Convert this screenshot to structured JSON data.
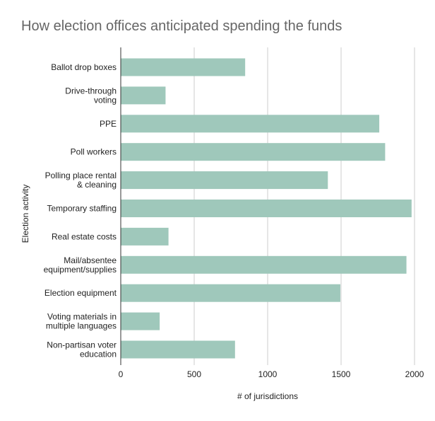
{
  "chart_data": {
    "type": "bar",
    "orientation": "horizontal",
    "title": "How election offices anticipated spending the funds",
    "xlabel": "# of jurisdictions",
    "ylabel": "Election activity",
    "xlim": [
      0,
      2000
    ],
    "xticks": [
      "0",
      "500",
      "1000",
      "1500",
      "2000"
    ],
    "grid": "vertical",
    "legend": "none",
    "bar_color": "#9fc8bb",
    "categories": [
      [
        "Ballot drop boxes"
      ],
      [
        "Drive-through",
        "voting"
      ],
      [
        "PPE"
      ],
      [
        "Poll workers"
      ],
      [
        "Polling place rental",
        "& cleaning"
      ],
      [
        "Temporary staffing"
      ],
      [
        "Real estate costs"
      ],
      [
        "Mail/absentee",
        "equipment/supplies"
      ],
      [
        "Election equipment"
      ],
      [
        "Voting materials in",
        "multiple languages"
      ],
      [
        "Non-partisan voter",
        "education"
      ]
    ],
    "values": [
      847,
      305,
      1760,
      1800,
      1410,
      1980,
      325,
      1945,
      1495,
      265,
      778
    ]
  }
}
